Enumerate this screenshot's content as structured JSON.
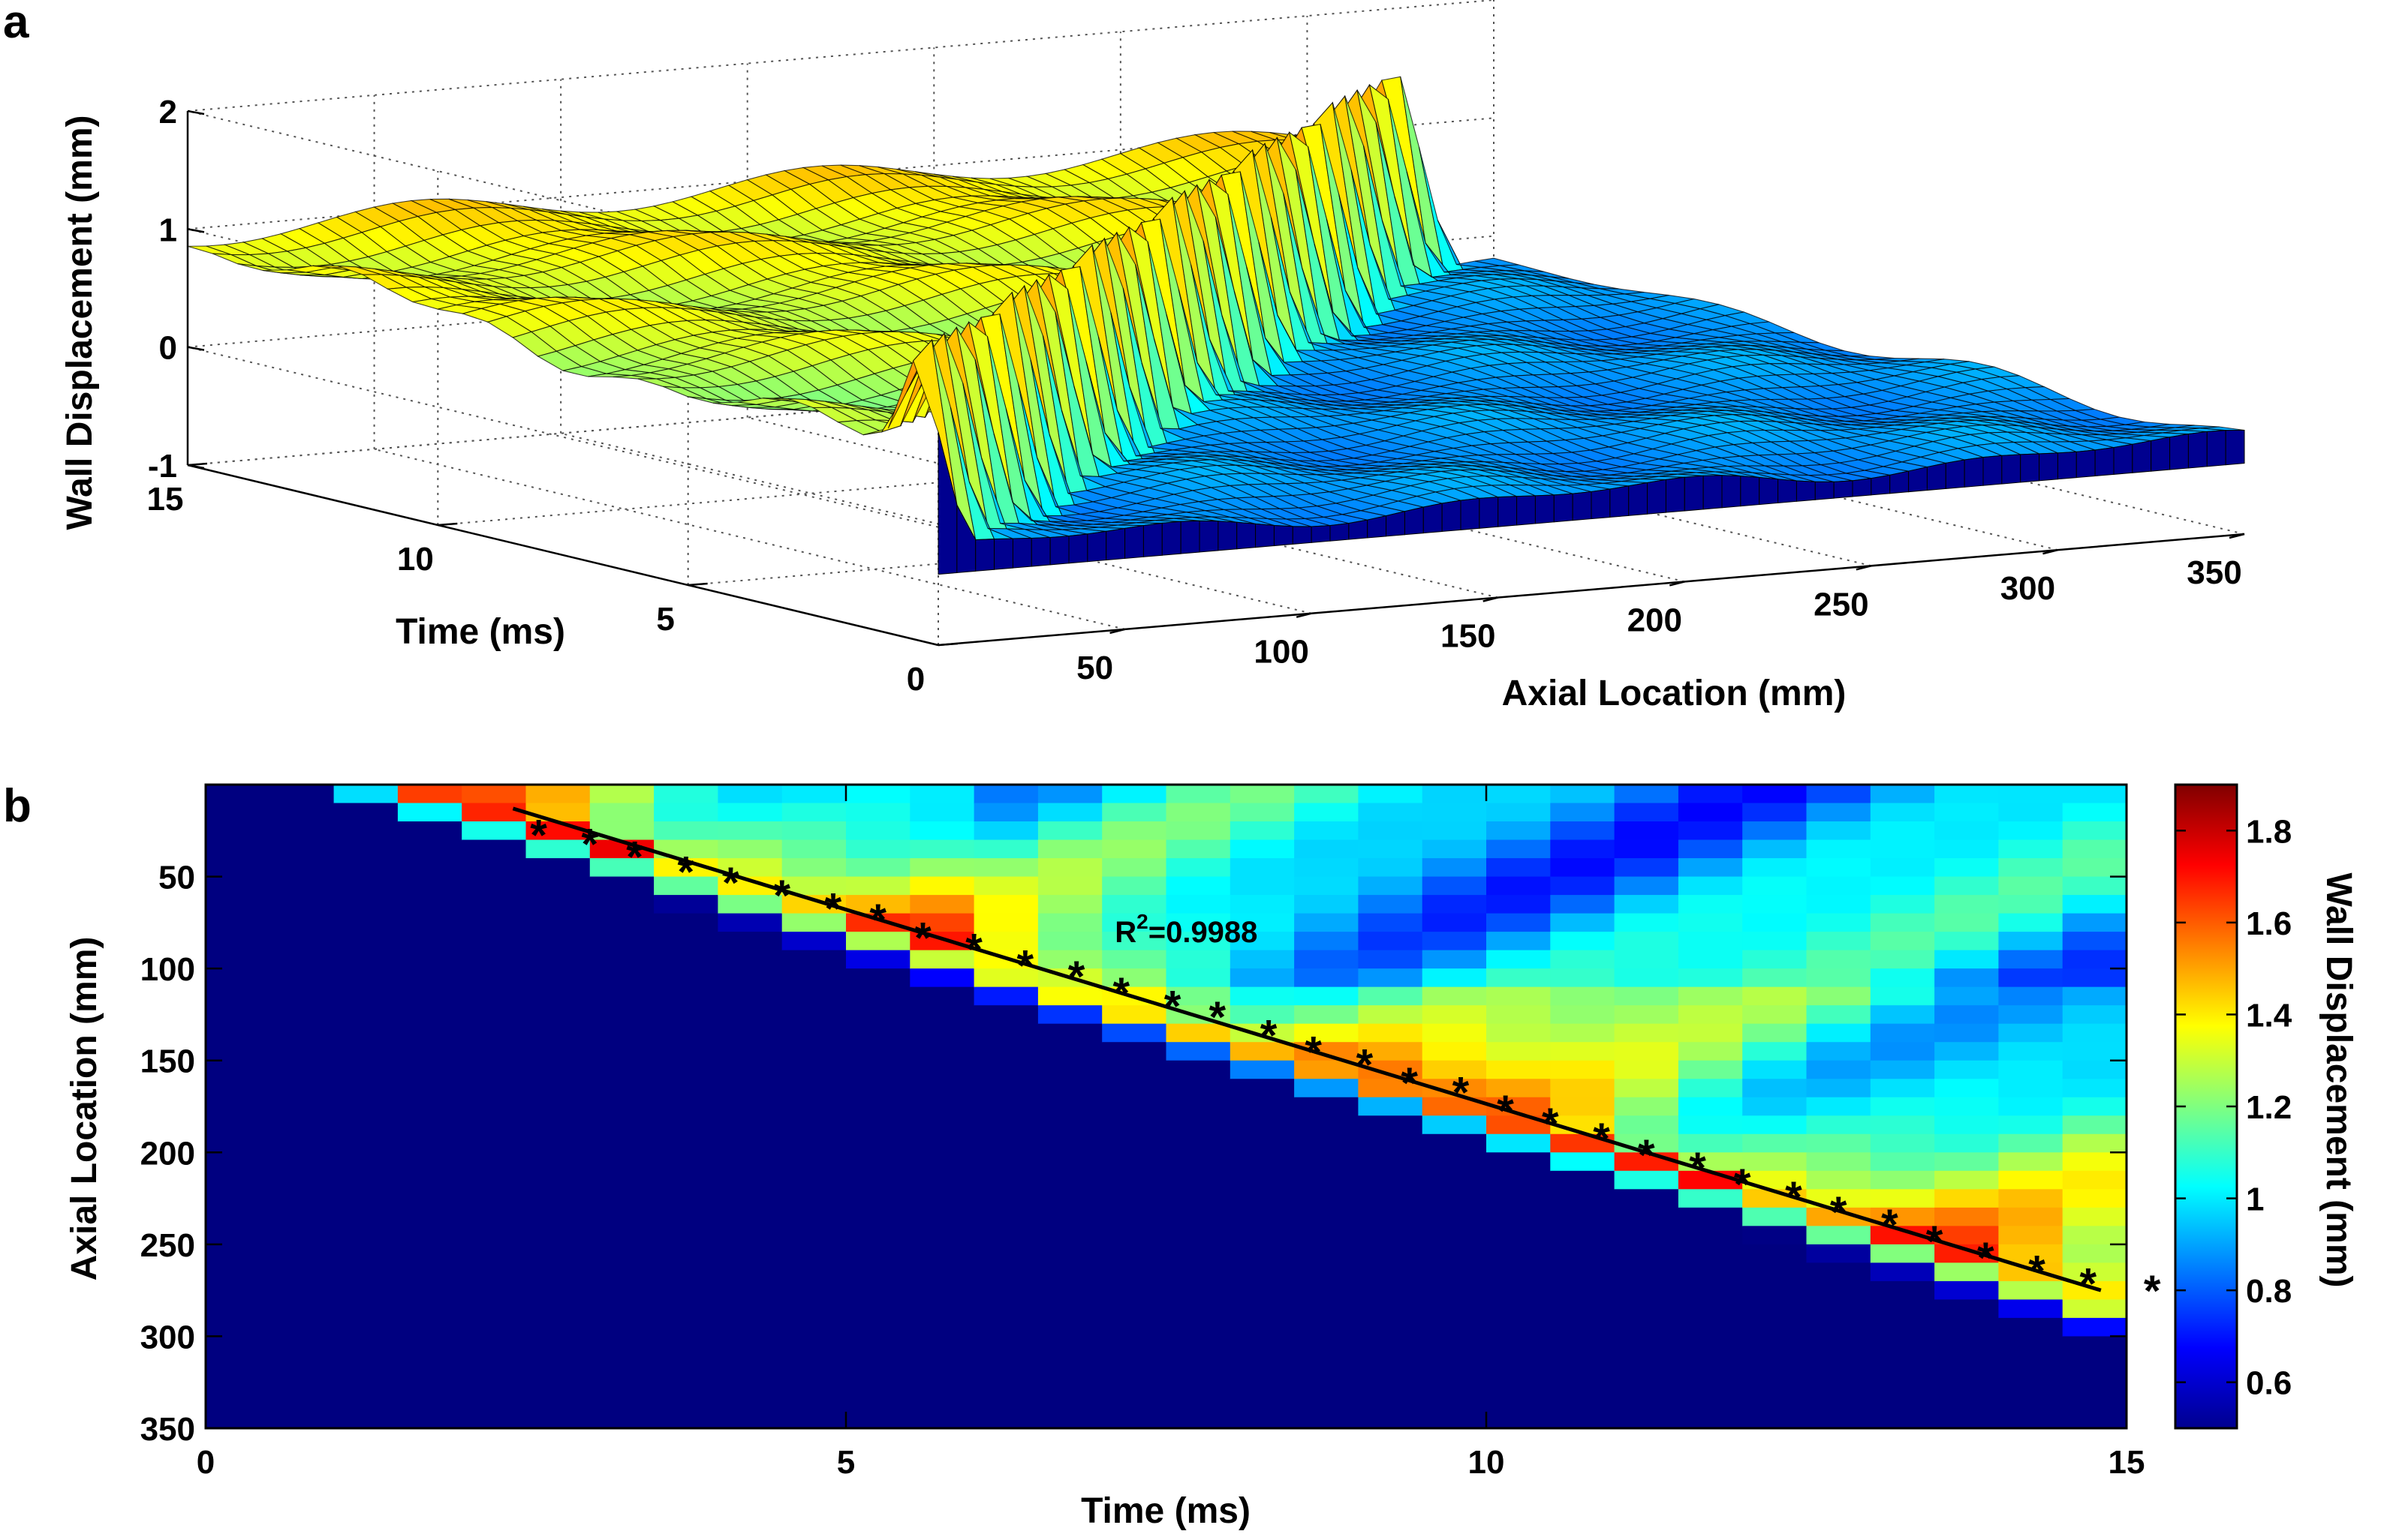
{
  "chart_data": [
    {
      "panel": "a",
      "type": "surface3d",
      "zlabel": "Wall Displacement (mm)",
      "xlabel": "Axial Location (mm)",
      "ylabel": "Time (ms)",
      "zticks": [
        "-1",
        "0",
        "1",
        "2"
      ],
      "xticks": [
        "50",
        "100",
        "150",
        "200",
        "250",
        "300",
        "350"
      ],
      "yticks": [
        "0",
        "5",
        "10",
        "15"
      ],
      "xlim": [
        0,
        350
      ],
      "ylim": [
        0,
        15
      ],
      "zlim": [
        -1,
        2
      ],
      "wave_speed_mm_per_ms": 22,
      "grid": true,
      "colormap": "jet"
    },
    {
      "panel": "b",
      "type": "heatmap",
      "xlabel": "Time (ms)",
      "ylabel": "Axial Location (mm)",
      "colorbar_label": "Wall Displacement (mm)",
      "xticks": [
        "0",
        "5",
        "10",
        "15"
      ],
      "yticks": [
        "50",
        "100",
        "150",
        "200",
        "250",
        "300",
        "350"
      ],
      "colorbar_ticks": [
        "0.6",
        "0.8",
        "1",
        "1.2",
        "1.4",
        "1.6",
        "1.8"
      ],
      "xlim": [
        0,
        15
      ],
      "ylim": [
        0,
        350
      ],
      "clim": [
        0.5,
        1.9
      ],
      "colormap": "jet",
      "annotation": {
        "text": "R",
        "superscript": "2",
        "rest": "=0.9988",
        "x": 7.1,
        "y": 80
      },
      "fit_line": {
        "x": [
          2.4,
          14.8
        ],
        "y": [
          13,
          275
        ]
      },
      "markers": {
        "symbol": "*",
        "x": [
          2.6,
          3.0,
          3.35,
          3.75,
          4.1,
          4.5,
          4.9,
          5.25,
          5.6,
          6.0,
          6.4,
          6.8,
          7.15,
          7.55,
          7.9,
          8.3,
          8.65,
          9.05,
          9.4,
          9.8,
          10.15,
          10.5,
          10.9,
          11.25,
          11.65,
          12.0,
          12.4,
          12.75,
          13.15,
          13.5,
          13.9,
          14.3,
          14.7,
          15.2
        ],
        "y": [
          25,
          30,
          37,
          45,
          51,
          58,
          65,
          71,
          81,
          87,
          96,
          102,
          111,
          118,
          124,
          134,
          143,
          150,
          160,
          165,
          175,
          182,
          190,
          199,
          206,
          215,
          222,
          230,
          237,
          246,
          255,
          262,
          269,
          273
        ]
      }
    }
  ],
  "panel_labels": {
    "a": "a",
    "b": "b"
  }
}
